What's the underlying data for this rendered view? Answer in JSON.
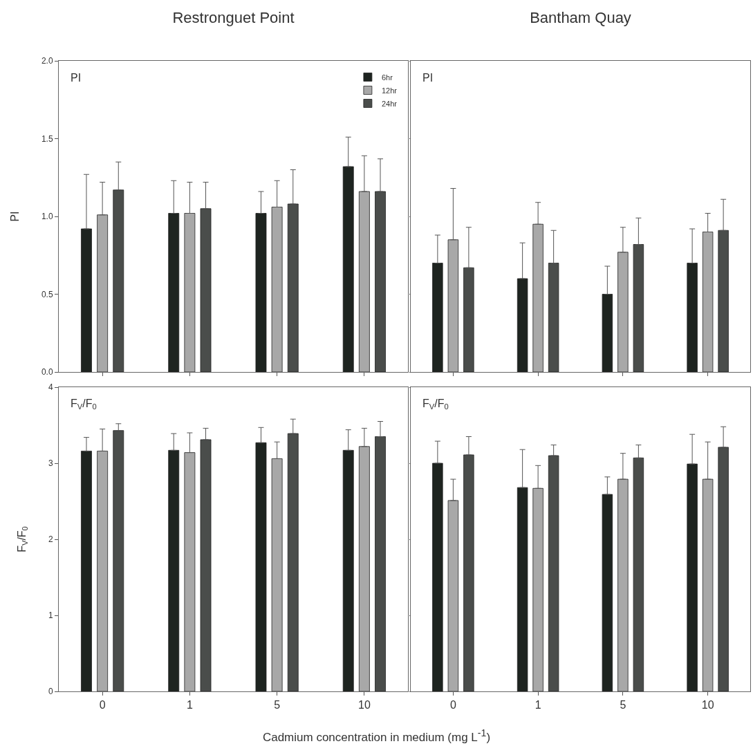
{
  "chart_data": [
    {
      "type": "bar",
      "title": "Restronguet Point",
      "ylabel": "PI",
      "categories": [
        "0",
        "1",
        "5",
        "10"
      ],
      "ylim": [
        0,
        2
      ],
      "yticks": [
        {
          "value": 0,
          "label": "0.0"
        },
        {
          "value": 0.5,
          "label": "0.5"
        },
        {
          "value": 1,
          "label": "1.0"
        },
        {
          "value": 1.5,
          "label": "1.5"
        },
        {
          "value": 2,
          "label": "2.0"
        }
      ],
      "tick_labels": "y",
      "legend": "top right",
      "annotations": [
        "PI"
      ],
      "series": [
        {
          "name": "6hr",
          "color": "#1e2420",
          "values": [
            0.92,
            1.02,
            1.02,
            1.32
          ],
          "errors": [
            [
              0.92,
              1.27
            ],
            [
              1.02,
              1.23
            ],
            [
              1.02,
              1.16
            ],
            [
              1.32,
              1.51
            ]
          ]
        },
        {
          "name": "12hr",
          "color": "#a8a8a8",
          "values": [
            1.01,
            1.02,
            1.06,
            1.16
          ],
          "errors": [
            [
              1.01,
              1.22
            ],
            [
              1.02,
              1.22
            ],
            [
              1.06,
              1.23
            ],
            [
              1.16,
              1.39
            ]
          ]
        },
        {
          "name": "24hr",
          "color": "#4a4d4b",
          "values": [
            1.17,
            1.05,
            1.08,
            1.16
          ],
          "errors": [
            [
              1.17,
              1.35
            ],
            [
              1.05,
              1.22
            ],
            [
              1.08,
              1.3
            ],
            [
              1.16,
              1.37
            ]
          ]
        }
      ]
    },
    {
      "type": "bar",
      "title": "Bantham Quay",
      "categories": [
        "0",
        "1",
        "5",
        "10"
      ],
      "ylim": [
        0,
        2
      ],
      "yticks": [
        {
          "value": 0,
          "label": null
        },
        {
          "value": 0.5,
          "label": null
        },
        {
          "value": 1,
          "label": null
        },
        {
          "value": 1.5,
          "label": null
        },
        {
          "value": 2,
          "label": null
        }
      ],
      "tick_labels": false,
      "annotations": [
        "PI"
      ],
      "series": [
        {
          "color": "#1e2420",
          "values": [
            0.7,
            0.6,
            0.5,
            0.7
          ],
          "errors": [
            [
              0.7,
              0.88
            ],
            [
              0.6,
              0.83
            ],
            [
              0.5,
              0.68
            ],
            [
              0.7,
              0.92
            ]
          ]
        },
        {
          "color": "#a8a8a8",
          "values": [
            0.85,
            0.95,
            0.77,
            0.9
          ],
          "errors": [
            [
              0.85,
              1.18
            ],
            [
              0.95,
              1.09
            ],
            [
              0.77,
              0.93
            ],
            [
              0.9,
              1.02
            ]
          ]
        },
        {
          "color": "#4a4d4b",
          "values": [
            0.67,
            0.7,
            0.82,
            0.91
          ],
          "errors": [
            [
              0.67,
              0.93
            ],
            [
              0.7,
              0.91
            ],
            [
              0.82,
              0.99
            ],
            [
              0.91,
              1.11
            ]
          ]
        }
      ]
    },
    {
      "type": "bar",
      "ylabel": "F$_{V}$/F$_{0}$",
      "xlabel": "Cadmium concentration in medium (mg L$^{-1}$)",
      "categories": [
        "0",
        "1",
        "5",
        "10"
      ],
      "ylim": [
        0,
        4
      ],
      "yticks": [
        0,
        1,
        2,
        3,
        4
      ],
      "annotations": [
        "F$_{V}$/F$_{0}$"
      ],
      "series": [
        {
          "color": "#1e2420",
          "values": [
            3.16,
            3.17,
            3.27,
            3.17
          ],
          "errors": [
            [
              3.16,
              3.34
            ],
            [
              3.17,
              3.39
            ],
            [
              3.27,
              3.47
            ],
            [
              3.17,
              3.44
            ]
          ]
        },
        {
          "color": "#a8a8a8",
          "values": [
            3.16,
            3.14,
            3.06,
            3.22
          ],
          "errors": [
            [
              3.16,
              3.45
            ],
            [
              3.14,
              3.4
            ],
            [
              3.06,
              3.28
            ],
            [
              3.22,
              3.46
            ]
          ]
        },
        {
          "color": "#4a4d4b",
          "values": [
            3.43,
            3.31,
            3.39,
            3.35
          ],
          "errors": [
            [
              3.43,
              3.52
            ],
            [
              3.31,
              3.46
            ],
            [
              3.39,
              3.58
            ],
            [
              3.35,
              3.55
            ]
          ]
        }
      ]
    },
    {
      "type": "bar",
      "categories": [
        "0",
        "1",
        "5",
        "10"
      ],
      "ylim": [
        0,
        4
      ],
      "yticks": [
        {
          "value": 0,
          "label": null
        },
        {
          "value": 1,
          "label": null
        },
        {
          "value": 2,
          "label": null
        },
        {
          "value": 3,
          "label": null
        },
        {
          "value": 4,
          "label": null
        }
      ],
      "tick_labels": "x",
      "annotations": [
        "F$_{V}$/F$_{0}$"
      ],
      "series": [
        {
          "color": "#1e2420",
          "values": [
            3.0,
            2.68,
            2.59,
            2.99
          ],
          "errors": [
            [
              3.0,
              3.29
            ],
            [
              2.68,
              3.18
            ],
            [
              2.59,
              2.82
            ],
            [
              2.99,
              3.38
            ]
          ]
        },
        {
          "color": "#a8a8a8",
          "values": [
            2.51,
            2.67,
            2.79,
            2.79
          ],
          "errors": [
            [
              2.51,
              2.79
            ],
            [
              2.67,
              2.97
            ],
            [
              2.79,
              3.13
            ],
            [
              2.79,
              3.28
            ]
          ]
        },
        {
          "color": "#4a4d4b",
          "values": [
            3.11,
            3.1,
            3.07,
            3.21
          ],
          "errors": [
            [
              3.11,
              3.35
            ],
            [
              3.1,
              3.24
            ],
            [
              3.07,
              3.24
            ],
            [
              3.21,
              3.48
            ]
          ]
        }
      ]
    }
  ]
}
